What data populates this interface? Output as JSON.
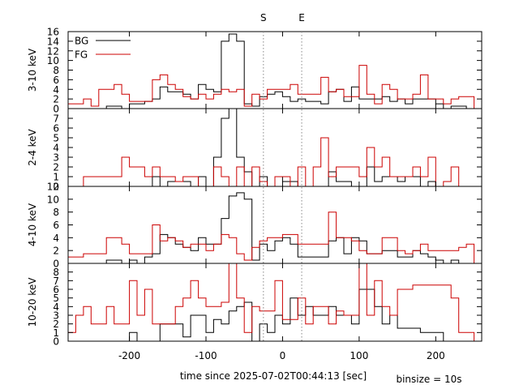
{
  "figure": {
    "xlabel": "time since 2025-07-02T00:44:13 [sec]",
    "binsize_label": "binsize = 10s",
    "marker_start_label": "S",
    "marker_end_label": "E",
    "colors": {
      "bg": "#000000",
      "fg": "#cc0000",
      "marker": "#888888"
    }
  },
  "chart_data": {
    "type": "line",
    "x_edges": [
      -280,
      -270,
      -260,
      -250,
      -240,
      -230,
      -220,
      -210,
      -200,
      -190,
      -180,
      -170,
      -160,
      -150,
      -140,
      -130,
      -120,
      -110,
      -100,
      -90,
      -80,
      -70,
      -60,
      -50,
      -40,
      -30,
      -20,
      -10,
      0,
      10,
      20,
      30,
      40,
      50,
      60,
      70,
      80,
      90,
      100,
      110,
      120,
      130,
      140,
      150,
      160,
      170,
      180,
      190,
      200,
      210,
      220,
      230,
      240,
      250,
      260
    ],
    "xlim": [
      -280,
      260
    ],
    "xticks": [
      -200,
      -100,
      0,
      100,
      200
    ],
    "markers": {
      "start": -25,
      "end": 25
    },
    "legend": {
      "position": "top-left",
      "entries": [
        "BG",
        "FG"
      ]
    },
    "panels": [
      {
        "ylabel": "3-10 keV",
        "ylim": [
          0,
          16
        ],
        "yticks": [
          0,
          2,
          4,
          6,
          8,
          10,
          12,
          14,
          16
        ],
        "series": [
          {
            "name": "BG",
            "values": [
              0,
              0,
              0,
              0,
              0,
              0.5,
              0.5,
              0,
              1,
              1,
              1.5,
              2,
              4.5,
              3.5,
              3.5,
              3,
              2,
              5,
              4,
              3.5,
              14,
              15.5,
              14,
              1,
              0.5,
              2.5,
              3,
              3.5,
              2.5,
              1.5,
              2,
              1.5,
              1.5,
              1,
              3.5,
              4,
              1.5,
              4.5,
              2,
              2,
              2,
              2.5,
              1.5,
              2,
              1,
              2,
              2,
              2,
              1,
              0,
              0.5,
              0.5,
              0,
              0
            ]
          },
          {
            "name": "FG",
            "values": [
              1,
              1,
              2,
              0.5,
              4,
              4,
              5,
              3,
              1.5,
              1.5,
              1.5,
              6,
              7,
              5,
              4,
              2.5,
              2,
              3,
              2,
              3,
              4,
              3.5,
              4,
              0.5,
              3,
              2,
              4,
              4,
              4,
              5,
              3,
              3,
              3,
              6.5,
              3.5,
              4,
              2.5,
              2.5,
              9,
              3,
              1,
              5,
              4,
              2,
              2,
              3,
              7,
              2,
              2,
              1,
              2,
              2.5,
              2.5,
              0
            ]
          }
        ]
      },
      {
        "ylabel": "2-4 keV",
        "ylim": [
          0,
          8
        ],
        "yticks": [
          0,
          1,
          2,
          3,
          4,
          5,
          6,
          7
        ],
        "series": [
          {
            "name": "BG",
            "values": [
              0,
              0,
              0,
              0,
              0,
              0,
              0,
              0,
              0,
              0,
              0,
              1,
              0,
              0.5,
              0.5,
              0.5,
              0,
              1,
              0,
              3,
              7,
              8,
              3,
              1.5,
              0,
              1,
              0,
              1,
              0.5,
              0.5,
              0,
              0,
              0,
              0,
              1.5,
              0.5,
              0.5,
              0,
              0,
              2,
              0.5,
              1,
              1,
              0.5,
              1,
              1,
              0,
              0.5,
              0,
              0,
              0,
              0,
              0,
              0
            ]
          },
          {
            "name": "FG",
            "values": [
              0,
              0,
              1,
              1,
              1,
              1,
              1,
              3,
              2,
              2,
              1,
              2,
              1,
              1,
              0.5,
              1,
              1,
              0,
              0,
              2,
              1,
              0,
              2,
              0,
              2,
              0.5,
              0,
              1,
              1,
              0,
              2,
              0,
              2,
              5,
              1,
              2,
              2,
              2,
              1,
              4,
              2,
              3,
              1,
              1,
              1,
              2,
              1,
              3,
              0,
              0.5,
              2,
              0,
              0,
              0
            ]
          }
        ]
      },
      {
        "ylabel": "4-10 keV",
        "ylim": [
          0,
          12
        ],
        "yticks": [
          0,
          2,
          4,
          6,
          8,
          10,
          12
        ],
        "series": [
          {
            "name": "BG",
            "values": [
              0,
              0,
              0,
              0,
              0,
              0.5,
              0.5,
              0,
              0.5,
              0,
              1,
              1.5,
              4.5,
              4,
              3,
              2.5,
              2,
              4,
              3,
              3,
              7,
              10.5,
              11,
              10,
              0.5,
              3,
              2,
              3.5,
              4,
              3,
              1,
              1,
              1,
              1,
              3.5,
              4,
              1.5,
              4,
              3.5,
              1.5,
              1.5,
              2,
              2,
              1,
              1,
              2,
              1.5,
              1,
              0.5,
              0,
              0.5,
              0,
              0,
              0
            ]
          },
          {
            "name": "FG",
            "values": [
              1,
              1,
              1.5,
              1.5,
              1.5,
              4,
              4,
              3,
              1.5,
              1.5,
              1.5,
              6,
              3.5,
              4,
              3.5,
              2.5,
              3,
              3,
              2,
              3,
              4.5,
              4,
              1.5,
              0.5,
              2.5,
              3.5,
              4,
              4,
              4.5,
              4.5,
              3,
              3,
              3,
              3,
              8,
              4,
              4,
              3.5,
              2,
              1.5,
              1.5,
              4,
              4,
              2,
              1.5,
              2,
              3,
              2,
              2,
              2,
              2,
              2.5,
              3,
              0
            ]
          }
        ]
      },
      {
        "ylabel": "10-20 keV",
        "ylim": [
          0,
          9
        ],
        "yticks": [
          0,
          1,
          2,
          3,
          4,
          5,
          6,
          7,
          8
        ],
        "series": [
          {
            "name": "BG",
            "values": [
              0,
              0,
              0,
              0,
              0,
              0,
              0,
              0,
              1,
              0,
              0,
              0,
              2,
              2,
              2,
              0.5,
              3,
              3,
              1,
              2.5,
              2,
              3.5,
              4,
              4.5,
              0,
              2,
              1,
              3,
              2,
              5,
              3,
              4,
              3,
              3,
              4,
              3,
              3,
              2,
              6,
              6,
              4,
              2,
              3,
              1.5,
              1.5,
              1.5,
              1,
              1,
              1,
              0,
              0,
              0,
              0,
              0
            ]
          },
          {
            "name": "FG",
            "values": [
              1,
              3,
              4,
              2,
              2,
              4,
              2,
              2,
              7,
              3,
              6,
              2,
              2,
              2,
              4,
              5,
              7,
              5,
              4,
              4,
              4.5,
              9,
              5,
              1,
              4,
              3.5,
              3.5,
              7,
              2.5,
              2.5,
              5,
              2,
              4,
              4,
              2,
              3.5,
              3,
              3,
              9.5,
              3,
              7,
              4,
              3,
              6,
              6,
              6.5,
              6.5,
              6.5,
              6.5,
              6.5,
              5,
              1,
              1,
              0
            ]
          }
        ]
      }
    ]
  }
}
